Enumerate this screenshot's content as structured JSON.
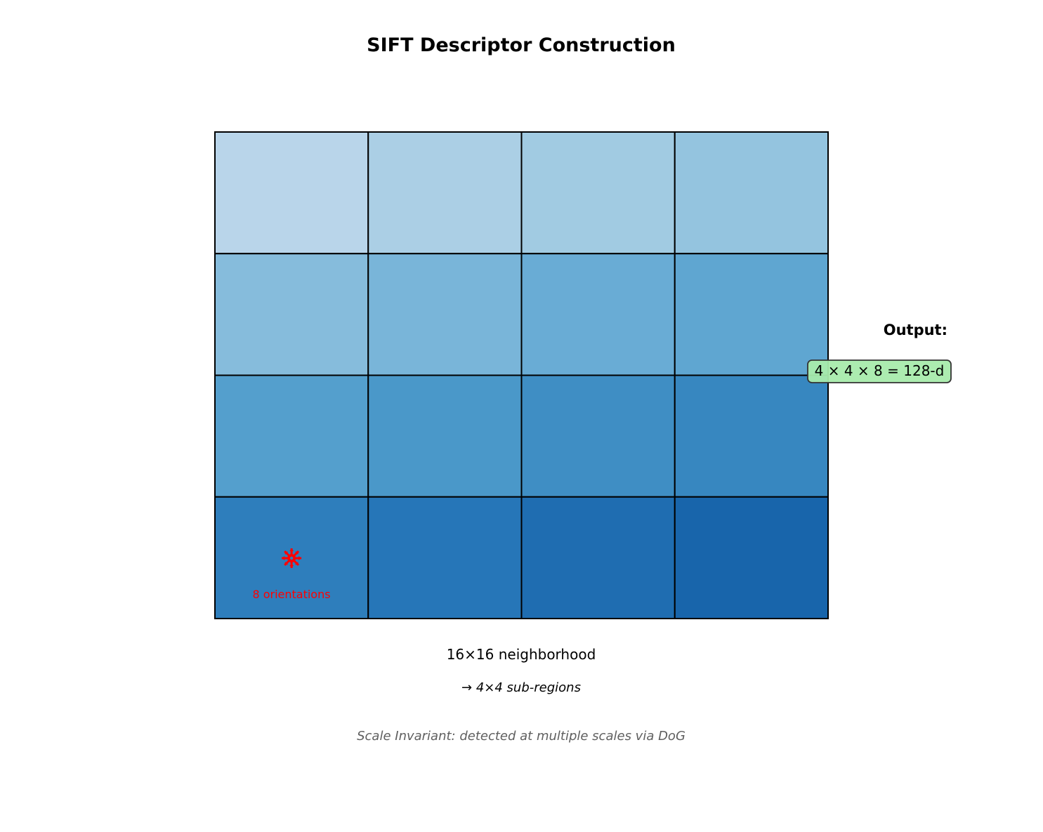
{
  "title": "SIFT Descriptor Construction",
  "grid": {
    "rows": 4,
    "cols": 4,
    "cell_colors": [
      [
        "#b9d5ea",
        "#abcfe5",
        "#a1cbe2",
        "#94c4df"
      ],
      [
        "#86bcdc",
        "#79b5d9",
        "#69acd5",
        "#5fa6d1"
      ],
      [
        "#549fcd",
        "#4a98c9",
        "#3f8ec4",
        "#3787c0"
      ],
      [
        "#2e7ebc",
        "#2676b8",
        "#1f6db1",
        "#1865ab"
      ]
    ],
    "border_color": "#000000"
  },
  "orientation_marker": {
    "label": "8 orientations",
    "count": 8,
    "cell": [
      3,
      0
    ],
    "color": "#ff0000",
    "icon": "orientation-star-icon"
  },
  "caption": {
    "main": "16×16 neighborhood",
    "sub": "→ 4×4 sub-regions",
    "note": "Scale Invariant: detected at multiple scales via DoG"
  },
  "output": {
    "label": "Output:",
    "value": "4 × 4 × 8 = 128-d",
    "box_color": "#a8ebac"
  }
}
